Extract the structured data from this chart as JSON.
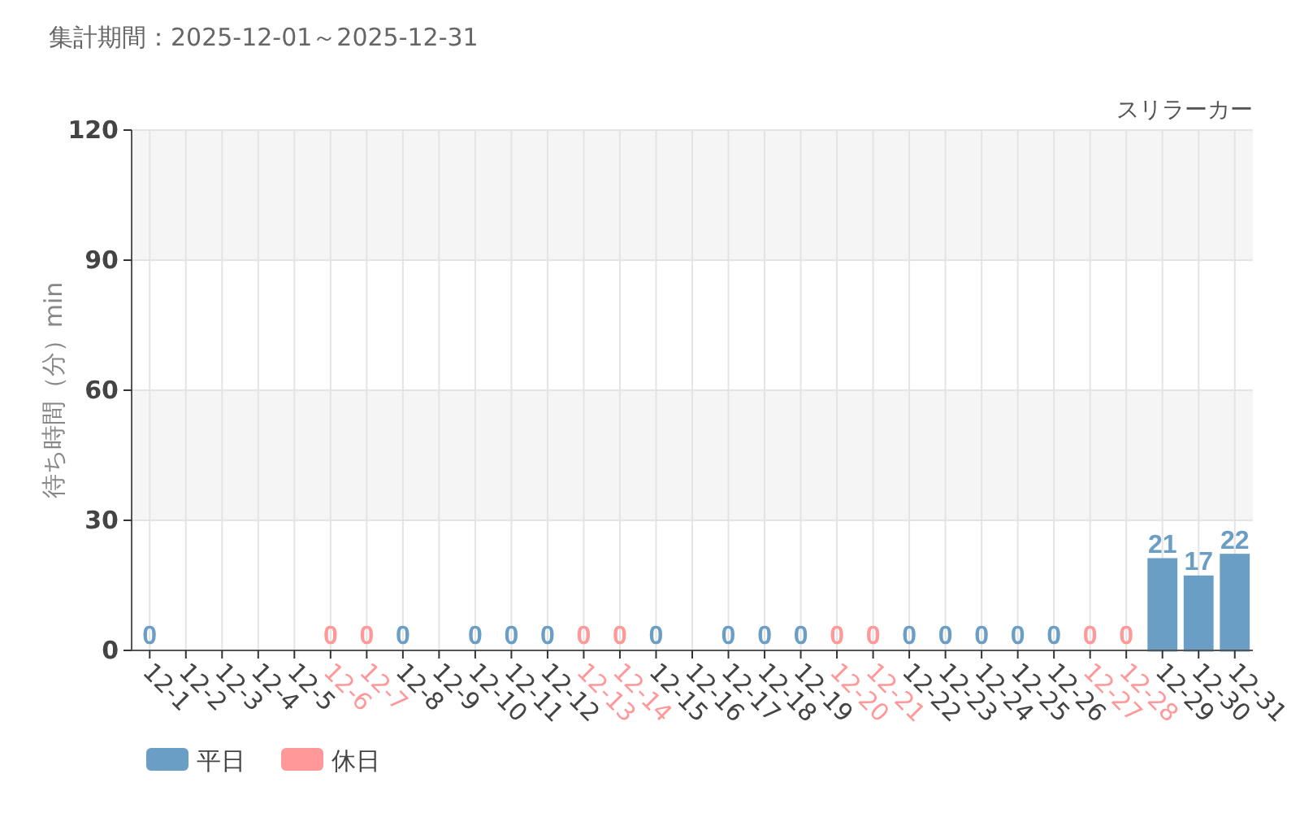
{
  "chart_data": {
    "type": "bar",
    "title": "集計期間：2025-12-01～2025-12-31",
    "subtitle": "スリラーカー",
    "ylabel": "待ち時間（分）min",
    "categories": [
      "12-1",
      "12-2",
      "12-3",
      "12-4",
      "12-5",
      "12-6",
      "12-7",
      "12-8",
      "12-9",
      "12-10",
      "12-11",
      "12-12",
      "12-13",
      "12-14",
      "12-15",
      "12-16",
      "12-17",
      "12-18",
      "12-19",
      "12-20",
      "12-21",
      "12-22",
      "12-23",
      "12-24",
      "12-25",
      "12-26",
      "12-27",
      "12-28",
      "12-29",
      "12-30",
      "12-31"
    ],
    "series": [
      {
        "name": "平日",
        "color": "#6a9ec5",
        "values": [
          0,
          null,
          null,
          null,
          null,
          null,
          null,
          0,
          null,
          0,
          0,
          0,
          null,
          null,
          0,
          null,
          0,
          0,
          0,
          null,
          null,
          0,
          0,
          0,
          0,
          0,
          null,
          null,
          21,
          17,
          22
        ]
      },
      {
        "name": "休日",
        "color": "#ff9999",
        "values": [
          null,
          null,
          null,
          null,
          null,
          0,
          0,
          null,
          null,
          null,
          null,
          null,
          0,
          0,
          null,
          null,
          null,
          null,
          null,
          0,
          0,
          null,
          null,
          null,
          null,
          null,
          0,
          0,
          null,
          null,
          null
        ]
      }
    ],
    "stacked": true,
    "ylim": [
      0,
      120
    ],
    "yticks": [
      0,
      30,
      60,
      90,
      120
    ],
    "grid": true,
    "legend": "bottom left",
    "data_labels": true,
    "bands": [
      {
        "axis": "y",
        "from": 30,
        "to": 60,
        "color": "#f5f5f5"
      },
      {
        "axis": "y",
        "from": 90,
        "to": 120,
        "color": "#f5f5f5"
      }
    ]
  }
}
